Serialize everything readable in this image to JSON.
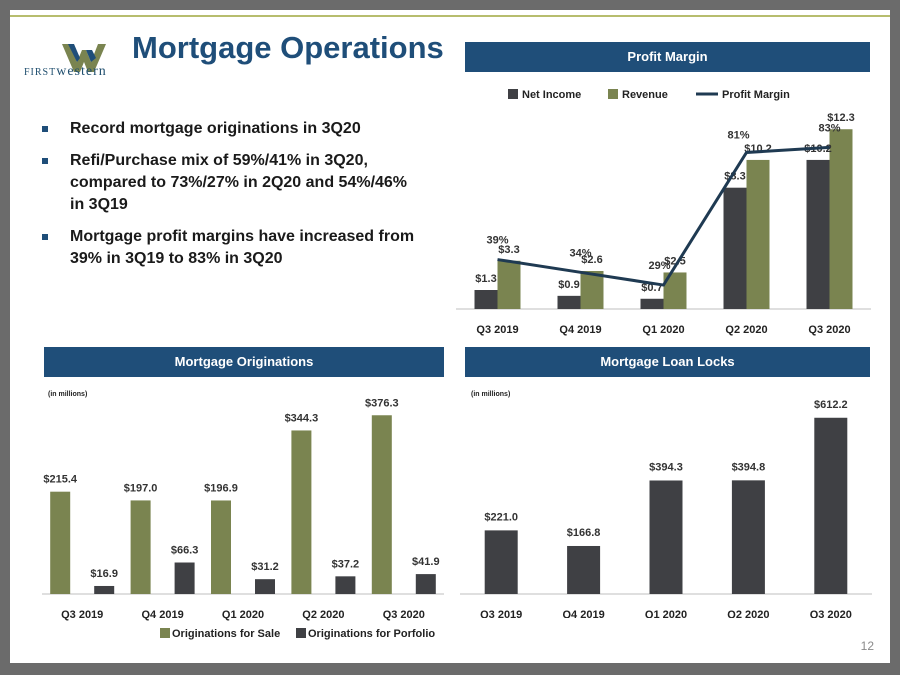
{
  "header": {
    "title": "Mortgage Operations",
    "logo_text_first": "FIRST",
    "logo_text_second": "western",
    "page_number": "12"
  },
  "bullets": [
    "Record mortgage originations in 3Q20",
    "Refi/Purchase mix of 59%/41% in 3Q20, compared to 73%/27% in 2Q20 and 54%/46% in 3Q19",
    "Mortgage profit margins have increased from 39% in 3Q19 to 83% in 3Q20"
  ],
  "colors": {
    "dark_bar": "#3f4044",
    "olive_bar": "#7a8450",
    "header": "#1f4e79",
    "line": "#1f3a52"
  },
  "chart_data": [
    {
      "type": "bar",
      "title": "Profit Margin",
      "categories": [
        "Q3 2019",
        "Q4 2019",
        "Q1 2020",
        "Q2 2020",
        "Q3 2020"
      ],
      "series": [
        {
          "name": "Net Income",
          "values": [
            1.3,
            0.9,
            0.7,
            8.3,
            10.2
          ],
          "labels": [
            "$1.3",
            "$0.9",
            "$0.7",
            "$8.3",
            "$10.2"
          ]
        },
        {
          "name": "Revenue",
          "values": [
            3.3,
            2.6,
            2.5,
            10.2,
            12.3
          ],
          "labels": [
            "$3.3",
            "$2.6",
            "$2.5",
            "$10.2",
            "$12.3"
          ]
        }
      ],
      "line_series": {
        "name": "Profit Margin",
        "values": [
          39,
          34,
          29,
          81,
          83
        ],
        "labels": [
          "39%",
          "34%",
          "29%",
          "81%",
          "83%"
        ]
      },
      "legend": [
        "Net Income",
        "Revenue",
        "Profit Margin"
      ],
      "legend_position": "top",
      "ylim": [
        0,
        13
      ],
      "line_ylim": [
        0,
        100
      ],
      "grid": false
    },
    {
      "type": "bar",
      "title": "Mortgage Originations",
      "note": "(in millions)",
      "categories": [
        "Q3 2019",
        "Q4 2019",
        "Q1 2020",
        "Q2 2020",
        "Q3 2020"
      ],
      "series": [
        {
          "name": "Originations for Sale",
          "values": [
            215.4,
            197.0,
            196.9,
            344.3,
            376.3
          ],
          "labels": [
            "$215.4",
            "$197.0",
            "$196.9",
            "$344.3",
            "$376.3"
          ]
        },
        {
          "name": "Originations for Porfolio",
          "values": [
            16.9,
            66.3,
            31.2,
            37.2,
            41.9
          ],
          "labels": [
            "$16.9",
            "$66.3",
            "$31.2",
            "$37.2",
            "$41.9"
          ]
        }
      ],
      "legend": [
        "Originations for Sale",
        "Originations for Porfolio"
      ],
      "legend_position": "bottom",
      "ylim": [
        0,
        400
      ],
      "grid": false
    },
    {
      "type": "bar",
      "title": "Mortgage Loan Locks",
      "note": "(in millions)",
      "categories": [
        "Q3 2019",
        "Q4 2019",
        "Q1 2020",
        "Q2 2020",
        "Q3 2020"
      ],
      "series": [
        {
          "name": "Loan Locks",
          "values": [
            221.0,
            166.8,
            394.3,
            394.8,
            612.2
          ],
          "labels": [
            "$221.0",
            "$166.8",
            "$394.3",
            "$394.8",
            "$612.2"
          ]
        }
      ],
      "ylim": [
        0,
        660
      ],
      "grid": false
    }
  ]
}
